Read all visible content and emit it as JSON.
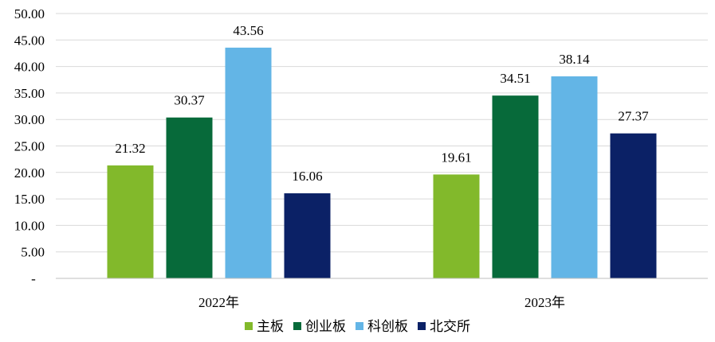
{
  "chart_data": {
    "type": "bar",
    "categories": [
      "2022年",
      "2023年"
    ],
    "series": [
      {
        "name": "主板",
        "color": "#82B92B",
        "values": [
          21.32,
          19.61
        ]
      },
      {
        "name": "创业板",
        "color": "#076A3A",
        "values": [
          30.37,
          34.51
        ]
      },
      {
        "name": "科创板",
        "color": "#63B5E6",
        "values": [
          43.56,
          38.14
        ]
      },
      {
        "name": "北交所",
        "color": "#0B2166",
        "values": [
          16.06,
          27.37
        ]
      }
    ],
    "data_labels": [
      [
        "21.32",
        "19.61"
      ],
      [
        "30.37",
        "34.51"
      ],
      [
        "43.56",
        "38.14"
      ],
      [
        "16.06",
        "27.37"
      ]
    ],
    "ylim": [
      0,
      50
    ],
    "yticks": [
      0,
      5,
      10,
      15,
      20,
      25,
      30,
      35,
      40,
      45,
      50
    ],
    "ytick_labels": [
      "-",
      "5.00",
      "10.00",
      "15.00",
      "20.00",
      "25.00",
      "30.00",
      "35.00",
      "40.00",
      "45.00",
      "50.00"
    ],
    "grid": true,
    "legend_position": "bottom",
    "title": "",
    "xlabel": "",
    "ylabel": ""
  }
}
